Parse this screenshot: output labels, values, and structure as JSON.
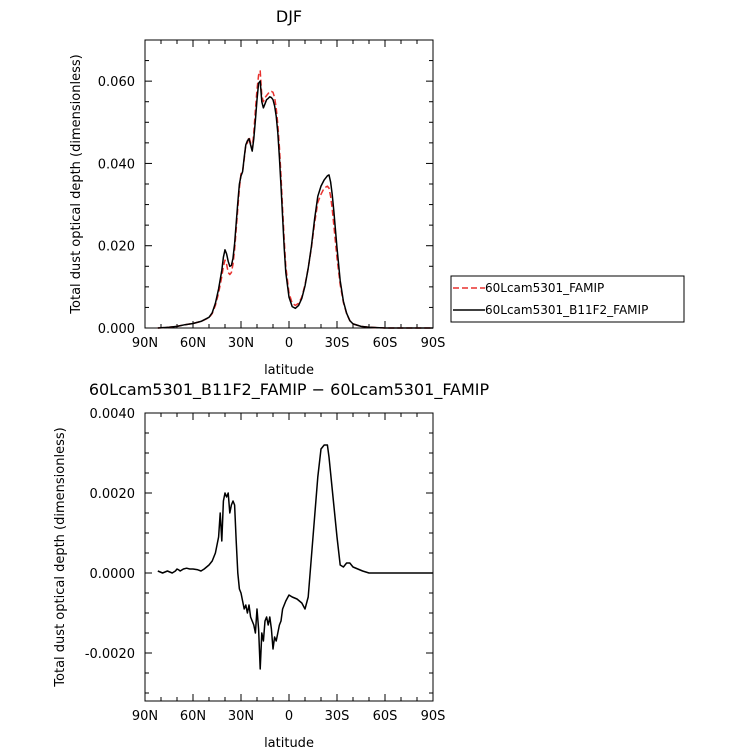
{
  "chart_data": [
    {
      "type": "line",
      "title": "DJF",
      "xlabel": "latitude",
      "ylabel": "Total dust optical depth (dimensionless)",
      "xlim": [
        90,
        -90
      ],
      "ylim": [
        0,
        0.07
      ],
      "x_ticks": [
        90,
        60,
        30,
        0,
        -30,
        -60,
        -90
      ],
      "x_tick_labels": [
        "90N",
        "60N",
        "30N",
        "0",
        "30S",
        "60S",
        "90S"
      ],
      "y_ticks": [
        0,
        0.02,
        0.04,
        0.06
      ],
      "y_tick_labels": [
        "0.000",
        "0.020",
        "0.040",
        "0.060"
      ],
      "grid": false,
      "legend_position": "right-outside",
      "series": [
        {
          "name": "60Lcam5301_FAMIP",
          "color": "#e8312e",
          "dash": "dashed",
          "x": [
            82,
            75,
            70,
            65,
            60,
            55,
            50,
            48,
            46,
            44,
            42,
            41,
            40,
            39,
            38,
            37,
            36,
            35,
            34,
            33,
            32,
            31,
            30,
            29,
            28,
            27,
            26,
            25,
            24,
            23,
            22,
            21,
            20,
            19,
            18,
            17,
            16,
            15,
            14,
            13,
            12,
            11,
            10,
            9,
            8,
            7,
            6,
            5,
            4,
            3,
            2,
            0,
            -2,
            -4,
            -6,
            -8,
            -10,
            -12,
            -14,
            -16,
            -18,
            -20,
            -22,
            -24,
            -25,
            -26,
            -27,
            -28,
            -30,
            -32,
            -34,
            -36,
            -38,
            -40,
            -45,
            -50,
            -55,
            -60,
            -70,
            -80,
            -90
          ],
          "y": [
            0.0,
            0.0002,
            0.0004,
            0.0008,
            0.0011,
            0.0016,
            0.0025,
            0.0035,
            0.0055,
            0.0085,
            0.0125,
            0.015,
            0.0165,
            0.0155,
            0.0135,
            0.013,
            0.0135,
            0.0155,
            0.019,
            0.024,
            0.029,
            0.034,
            0.0375,
            0.038,
            0.041,
            0.0445,
            0.045,
            0.0465,
            0.045,
            0.0435,
            0.0475,
            0.053,
            0.058,
            0.0615,
            0.0625,
            0.0565,
            0.055,
            0.056,
            0.0565,
            0.057,
            0.0575,
            0.0575,
            0.0573,
            0.056,
            0.0535,
            0.0495,
            0.044,
            0.037,
            0.029,
            0.0215,
            0.015,
            0.0085,
            0.006,
            0.0055,
            0.006,
            0.0075,
            0.0105,
            0.0145,
            0.0195,
            0.0255,
            0.0305,
            0.0325,
            0.034,
            0.0345,
            0.034,
            0.032,
            0.029,
            0.025,
            0.017,
            0.0105,
            0.0062,
            0.0035,
            0.0018,
            0.001,
            0.0004,
            0.0002,
            0.0001,
            0.0,
            0.0,
            0.0,
            0.0
          ]
        },
        {
          "name": "60Lcam5301_B11F2_FAMIP",
          "color": "#000000",
          "dash": "solid",
          "x": [
            82,
            75,
            70,
            65,
            60,
            55,
            50,
            48,
            46,
            44,
            42,
            41,
            40,
            39,
            38,
            37,
            36,
            35,
            34,
            33,
            32,
            31,
            30,
            29,
            28,
            27,
            26,
            25,
            24,
            23,
            22,
            21,
            20,
            19,
            18,
            17,
            16,
            15,
            14,
            13,
            12,
            11,
            10,
            9,
            8,
            7,
            6,
            5,
            4,
            3,
            2,
            0,
            -2,
            -4,
            -6,
            -8,
            -10,
            -12,
            -14,
            -16,
            -18,
            -20,
            -22,
            -24,
            -25,
            -26,
            -27,
            -28,
            -30,
            -32,
            -34,
            -36,
            -38,
            -40,
            -45,
            -50,
            -55,
            -60,
            -70,
            -80,
            -90
          ],
          "y": [
            0.0,
            0.0002,
            0.0004,
            0.0008,
            0.0011,
            0.0016,
            0.0026,
            0.0037,
            0.006,
            0.0095,
            0.014,
            0.0172,
            0.019,
            0.018,
            0.0162,
            0.015,
            0.0152,
            0.017,
            0.0205,
            0.0255,
            0.0305,
            0.035,
            0.037,
            0.038,
            0.0415,
            0.0445,
            0.0455,
            0.046,
            0.0445,
            0.043,
            0.046,
            0.0505,
            0.0555,
            0.0595,
            0.06,
            0.055,
            0.0535,
            0.0545,
            0.0555,
            0.0558,
            0.0562,
            0.056,
            0.0555,
            0.054,
            0.0515,
            0.0475,
            0.0415,
            0.0345,
            0.027,
            0.0195,
            0.0135,
            0.0075,
            0.0052,
            0.0048,
            0.0055,
            0.0072,
            0.0102,
            0.0145,
            0.0198,
            0.0265,
            0.032,
            0.0345,
            0.036,
            0.037,
            0.0372,
            0.0355,
            0.0325,
            0.0285,
            0.0195,
            0.0115,
            0.0065,
            0.0036,
            0.0018,
            0.001,
            0.0004,
            0.0002,
            0.0001,
            0.0,
            0.0,
            0.0,
            0.0
          ]
        }
      ]
    },
    {
      "type": "line",
      "title": "60Lcam5301_B11F2_FAMIP − 60Lcam5301_FAMIP",
      "xlabel": "latitude",
      "ylabel": "Total dust optical depth (dimensionless)",
      "xlim": [
        90,
        -90
      ],
      "ylim": [
        -0.0032,
        0.004
      ],
      "x_ticks": [
        90,
        60,
        30,
        0,
        -30,
        -60,
        -90
      ],
      "x_tick_labels": [
        "90N",
        "60N",
        "30N",
        "0",
        "30S",
        "60S",
        "90S"
      ],
      "y_ticks": [
        -0.002,
        0,
        0.002,
        0.004
      ],
      "y_tick_labels": [
        "-0.0020",
        "0.0000",
        "0.0020",
        "0.0040"
      ],
      "grid": false,
      "series": [
        {
          "color": "#000000",
          "dash": "solid",
          "x": [
            82,
            79,
            76,
            73,
            71,
            70,
            69,
            68,
            66,
            64,
            62,
            60,
            57,
            55,
            53,
            50,
            48,
            46,
            44,
            43,
            42,
            41,
            40,
            39,
            38,
            37,
            36,
            35,
            34,
            33,
            32,
            31,
            30,
            29,
            28,
            27,
            26,
            25,
            24,
            23,
            22,
            21,
            20,
            19,
            18,
            17,
            16,
            15,
            14,
            13,
            12,
            11,
            10,
            9,
            8,
            7,
            6,
            5,
            4,
            2,
            0,
            -2,
            -5,
            -8,
            -10,
            -12,
            -14,
            -16,
            -18,
            -20,
            -22,
            -24,
            -25,
            -26,
            -27,
            -28,
            -30,
            -32,
            -34,
            -36,
            -38,
            -40,
            -43,
            -46,
            -50,
            -55,
            -60,
            -70,
            -80,
            -90
          ],
          "y": [
            5e-05,
            0.0,
            5e-05,
            0.0,
            5e-05,
            0.0001,
            8e-05,
            5e-05,
            0.0001,
            0.00012,
            0.0001,
            0.0001,
            8e-05,
            5e-05,
            0.0001,
            0.0002,
            0.0003,
            0.0005,
            0.0009,
            0.0015,
            0.0008,
            0.0018,
            0.002,
            0.0019,
            0.002,
            0.0015,
            0.0017,
            0.0018,
            0.0017,
            0.0008,
            0.0,
            -0.0004,
            -0.0005,
            -0.0007,
            -0.0009,
            -0.0008,
            -0.001,
            -0.0008,
            -0.0011,
            -0.0012,
            -0.0013,
            -0.0015,
            -0.0009,
            -0.0014,
            -0.0024,
            -0.0015,
            -0.0017,
            -0.0012,
            -0.0011,
            -0.0013,
            -0.0011,
            -0.0014,
            -0.0019,
            -0.0016,
            -0.0017,
            -0.0015,
            -0.0013,
            -0.0012,
            -0.0009,
            -0.0007,
            -0.00055,
            -0.0006,
            -0.00065,
            -0.00075,
            -0.0009,
            -0.0006,
            0.0004,
            0.0014,
            0.0024,
            0.0031,
            0.0032,
            0.0032,
            0.0029,
            0.0025,
            0.0021,
            0.0017,
            0.0009,
            0.0002,
            0.00015,
            0.00025,
            0.00025,
            0.00015,
            0.0001,
            5e-05,
            0.0,
            0.0,
            0.0,
            0.0,
            0.0,
            0.0
          ]
        }
      ]
    }
  ]
}
